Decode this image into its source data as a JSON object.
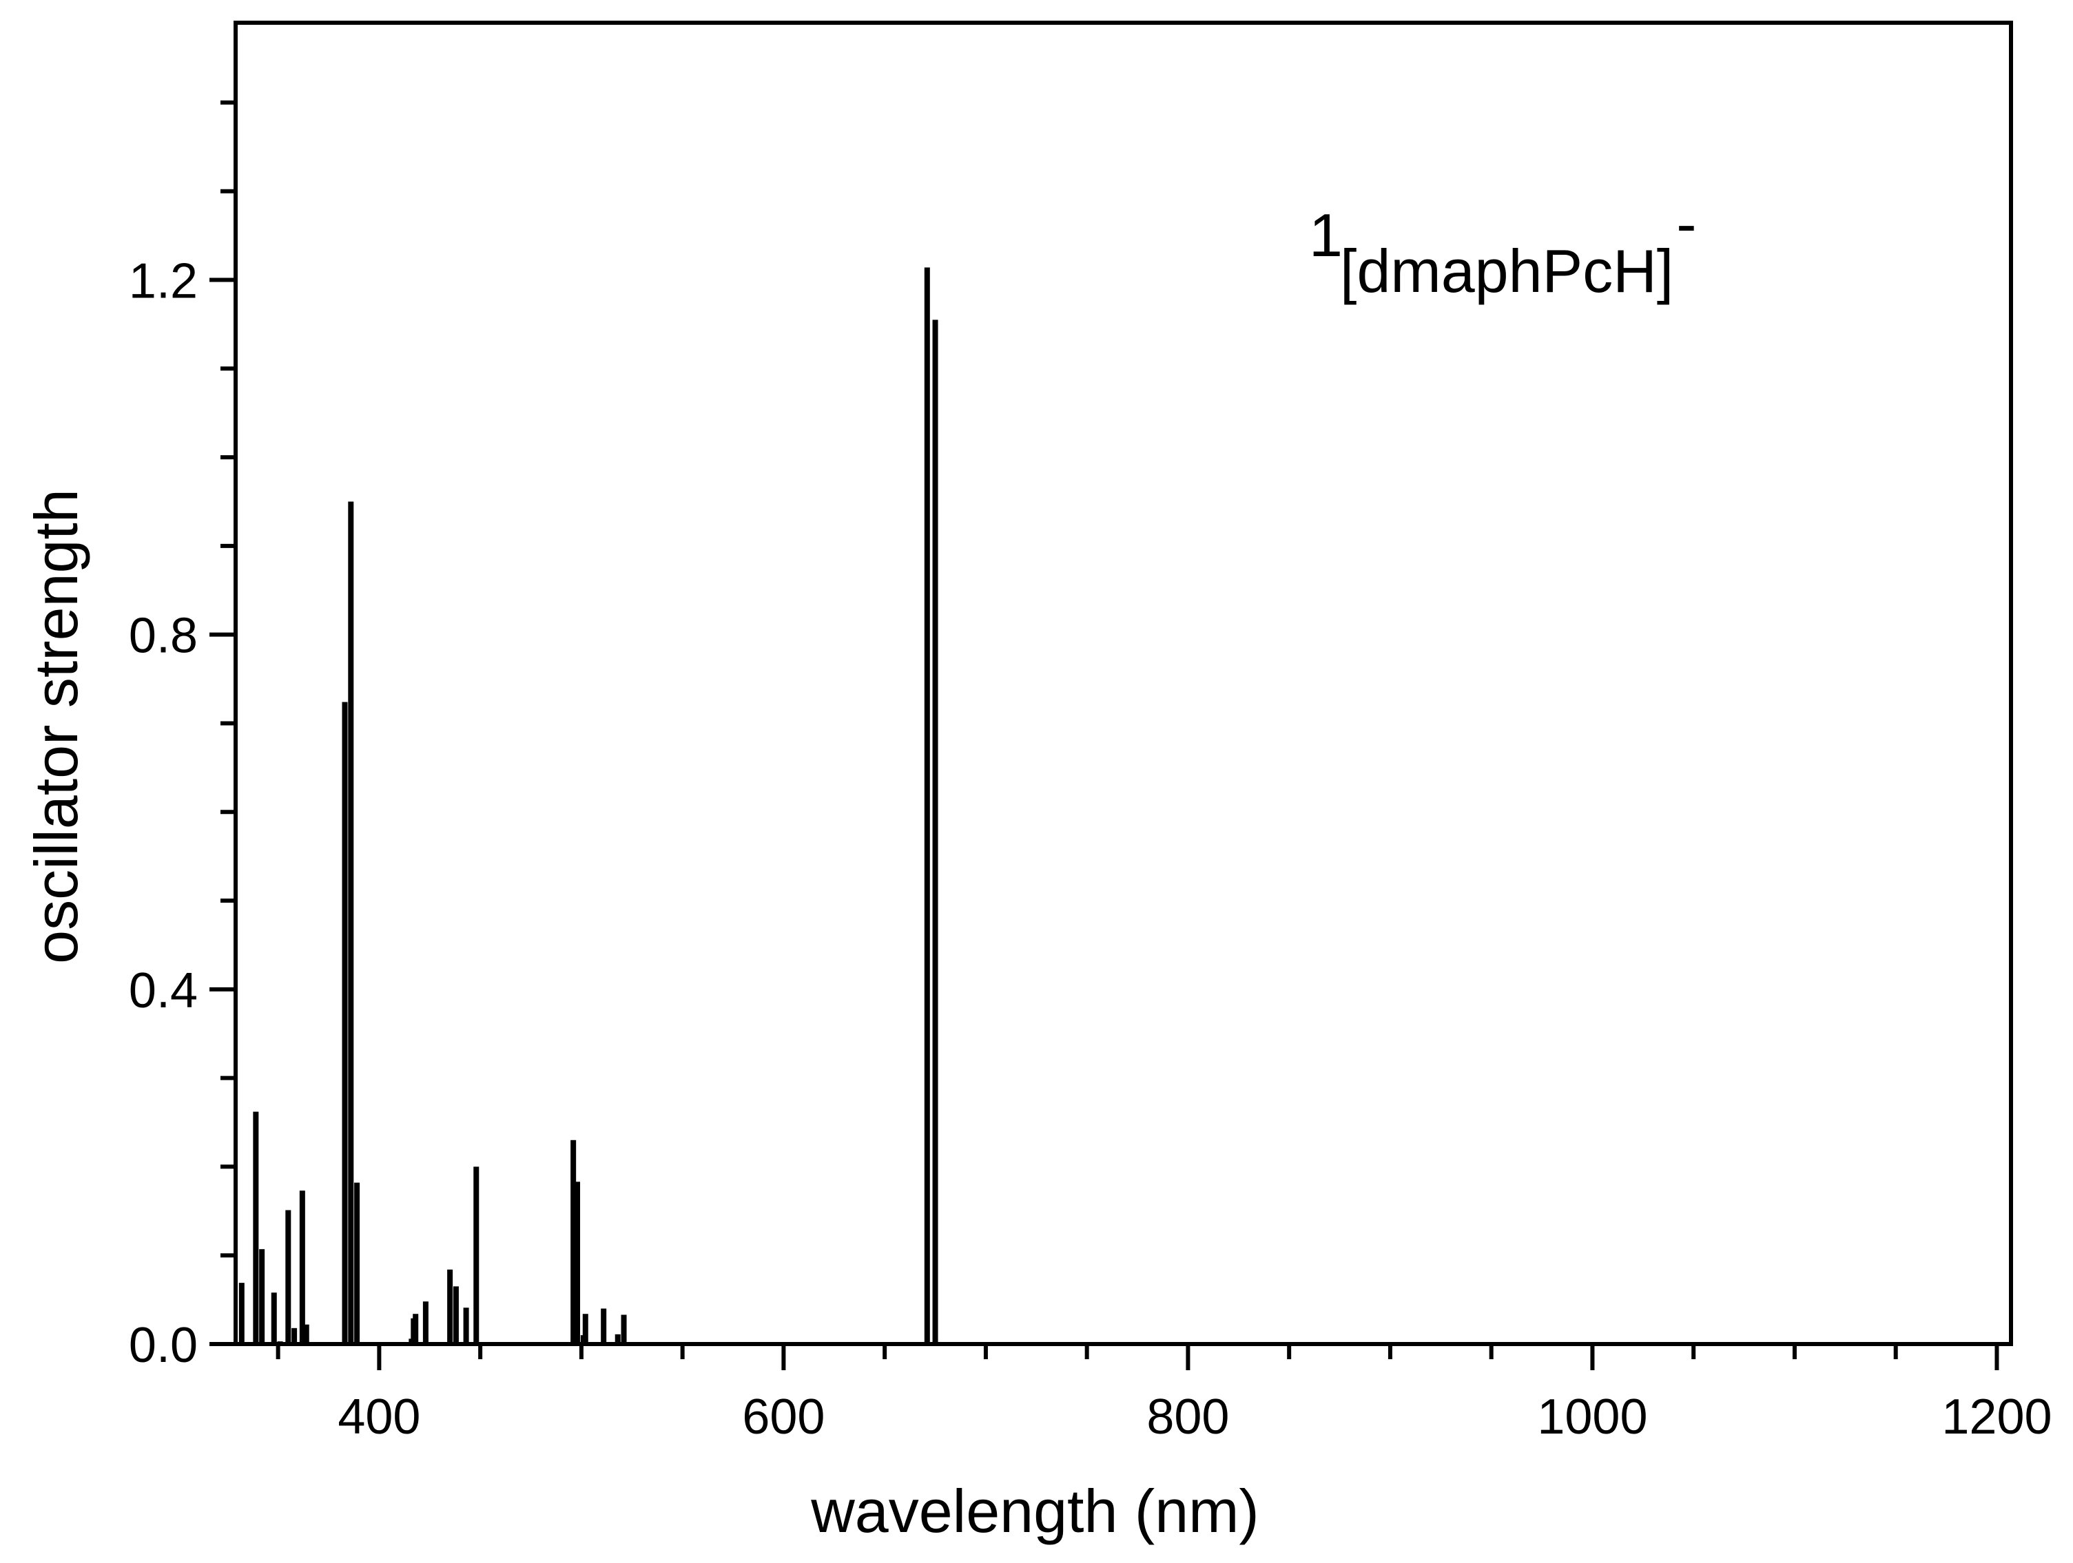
{
  "chart_data": {
    "type": "bar",
    "subtype": "stick-spectrum",
    "title": "",
    "annotation": {
      "prefix_superscript": "1",
      "text": "[dmaphPcH]",
      "suffix_superscript": "-"
    },
    "xlabel": "wavelength (nm)",
    "ylabel": "oscillator strength",
    "xlim": [
      329,
      1207
    ],
    "ylim": [
      0,
      1.49
    ],
    "x_ticks": [
      400,
      600,
      800,
      1000,
      1200
    ],
    "x_tick_labels": [
      "400",
      "600",
      "800",
      "1000",
      "1200"
    ],
    "x_minor_tick_step": 50,
    "y_ticks": [
      0.0,
      0.4,
      0.8,
      1.2
    ],
    "y_tick_labels": [
      "0.0",
      "0.4",
      "0.8",
      "1.2"
    ],
    "y_minor_tick_step": 0.1,
    "grid": false,
    "legend": null,
    "color": "#000000",
    "x": [
      332,
      339,
      342,
      348,
      351,
      355,
      358,
      362,
      364,
      383,
      386,
      389,
      416,
      417,
      418,
      423,
      435,
      438,
      443,
      448,
      496,
      498,
      501,
      502,
      511,
      518,
      521,
      671,
      675
    ],
    "values": [
      0.069,
      0.262,
      0.107,
      0.058,
      0.003,
      0.151,
      0.018,
      0.173,
      0.022,
      0.724,
      0.95,
      0.182,
      0.006,
      0.029,
      0.034,
      0.048,
      0.084,
      0.065,
      0.041,
      0.2,
      0.23,
      0.183,
      0.01,
      0.034,
      0.04,
      0.011,
      0.033,
      1.214,
      1.155
    ]
  }
}
